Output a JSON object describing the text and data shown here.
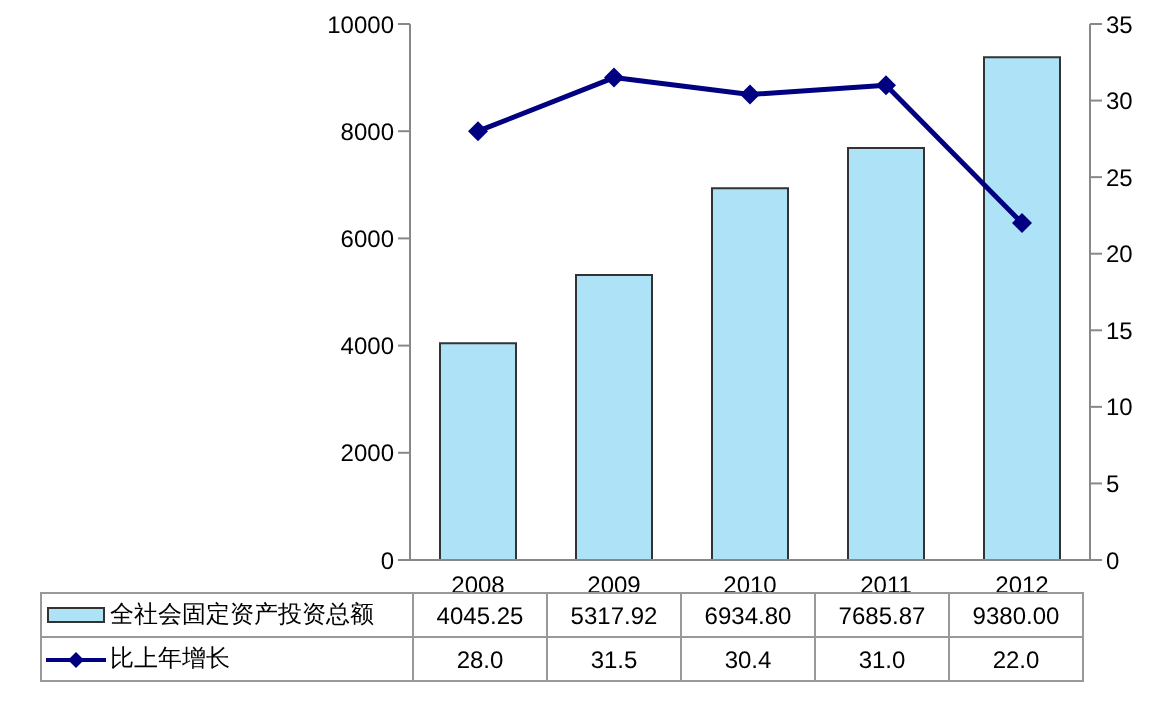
{
  "chart_data": {
    "type": "bar",
    "categories": [
      "2008",
      "2009",
      "2010",
      "2011",
      "2012"
    ],
    "series": [
      {
        "name": "全社会固定资产投资总额",
        "color": "#aee3f7",
        "values": [
          4045.25,
          5317.92,
          6934.8,
          7685.87,
          9380.0
        ],
        "value_labels": [
          "4045.25",
          "5317.92",
          "6934.80",
          "7685.87",
          "9380.00"
        ]
      },
      {
        "name": "比上年增长",
        "type": "line",
        "axis": "y2",
        "color": "#000080",
        "values": [
          28.0,
          31.5,
          30.4,
          31.0,
          22.0
        ],
        "value_labels": [
          "28.0",
          "31.5",
          "30.4",
          "31.0",
          "22.0"
        ]
      }
    ],
    "ylim": [
      0,
      10000
    ],
    "yticks": [
      0,
      2000,
      4000,
      6000,
      8000,
      10000
    ],
    "y2lim": [
      0,
      35
    ],
    "y2ticks": [
      0,
      5,
      10,
      15,
      20,
      25,
      30,
      35
    ],
    "marker": "diamond",
    "line_style": "solid",
    "legend": "bottom",
    "grid": false
  }
}
